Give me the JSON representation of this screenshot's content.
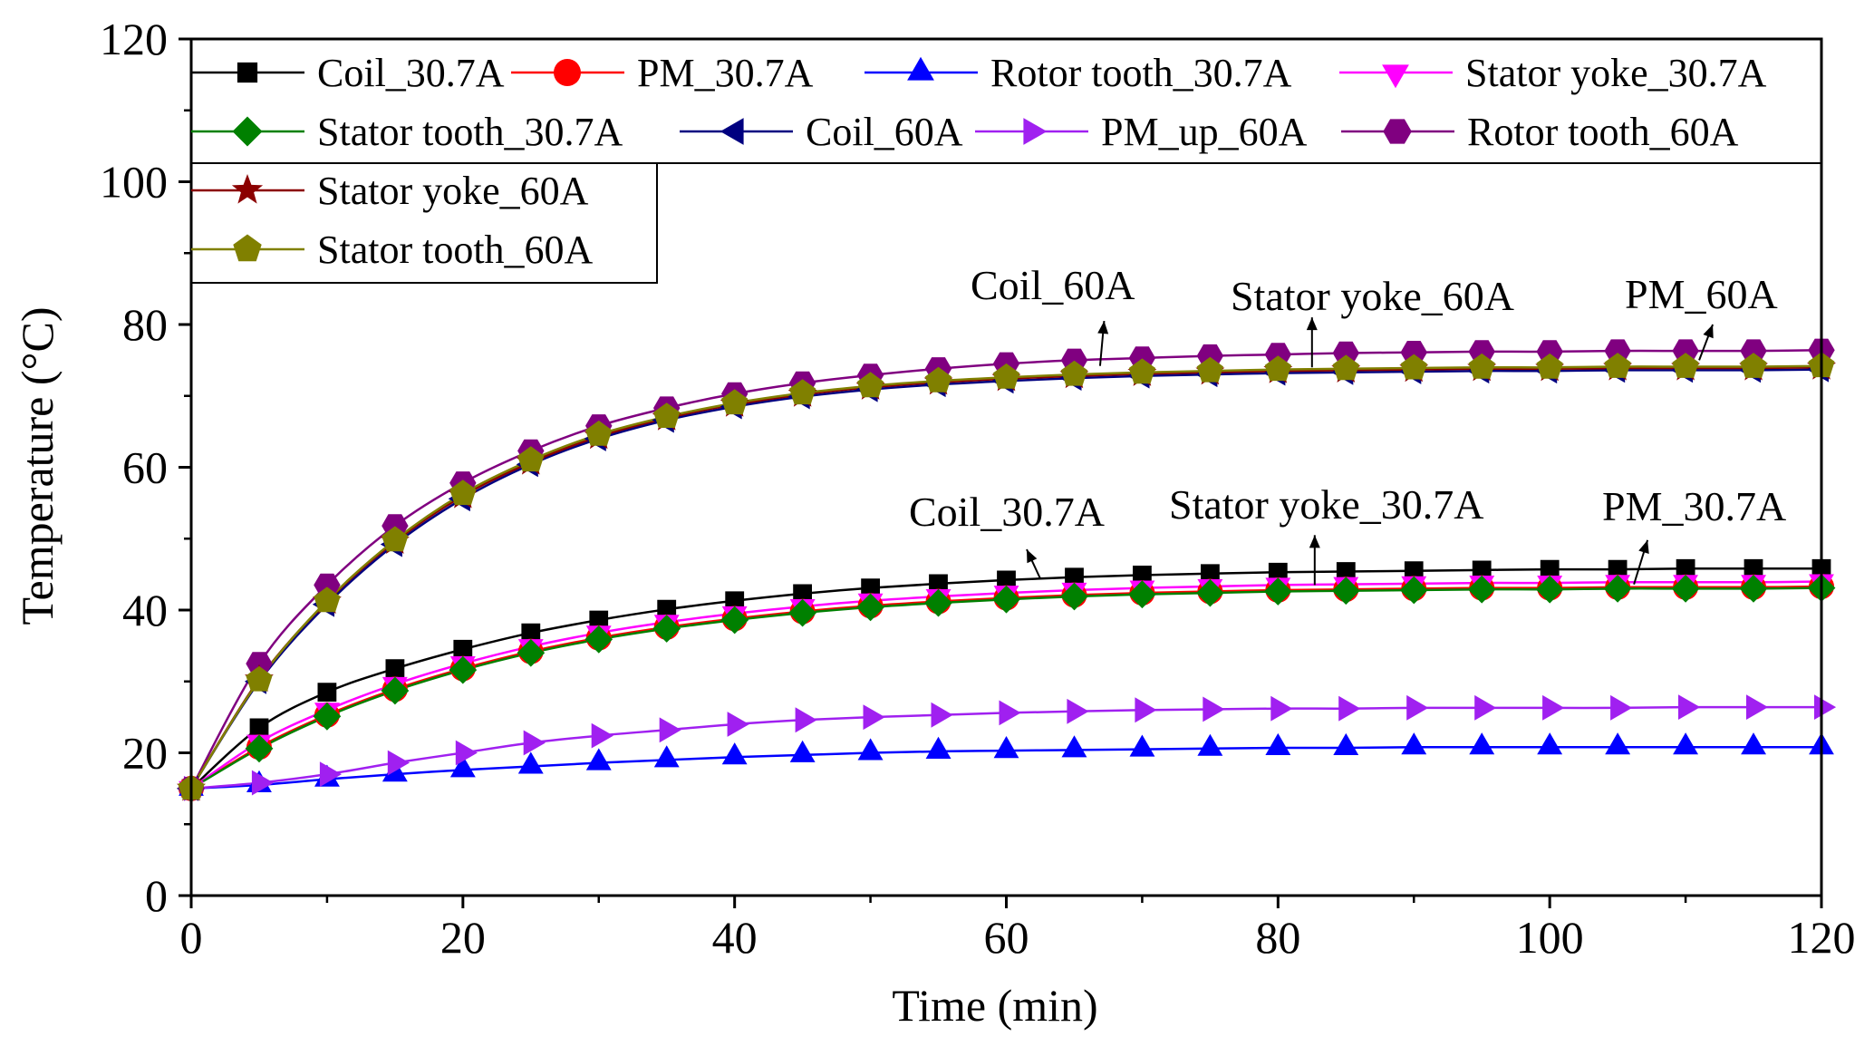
{
  "chart_data": {
    "type": "line",
    "title": "",
    "xlabel": "Time (min)",
    "ylabel": "Temperature (°C)",
    "xlim": [
      0,
      120
    ],
    "ylim": [
      0,
      120
    ],
    "xticks": [
      0,
      20,
      40,
      60,
      80,
      100,
      120
    ],
    "yticks": [
      0,
      20,
      40,
      60,
      80,
      100,
      120
    ],
    "grid": false,
    "legend_position": "top",
    "x": [
      0,
      5,
      10,
      15,
      20,
      25,
      30,
      35,
      40,
      45,
      50,
      55,
      60,
      65,
      70,
      75,
      80,
      85,
      90,
      95,
      100,
      105,
      110,
      115,
      120
    ],
    "series": [
      {
        "name": "Coil_30.7A",
        "marker": "square",
        "color": "#000000",
        "line_color": "#000000",
        "values": [
          15,
          23.5,
          28.5,
          31.8,
          34.5,
          36.8,
          38.6,
          40.1,
          41.3,
          42.3,
          43.1,
          43.7,
          44.2,
          44.6,
          44.9,
          45.1,
          45.3,
          45.4,
          45.5,
          45.6,
          45.7,
          45.7,
          45.8,
          45.8,
          45.8
        ]
      },
      {
        "name": "PM_30.7A",
        "marker": "circle",
        "color": "#ff0000",
        "line_color": "#ff0000",
        "values": [
          15,
          20.8,
          25.3,
          28.9,
          31.8,
          34.2,
          36.1,
          37.6,
          38.8,
          39.8,
          40.6,
          41.2,
          41.7,
          42.1,
          42.4,
          42.6,
          42.8,
          42.9,
          43.0,
          43.1,
          43.1,
          43.2,
          43.2,
          43.2,
          43.3
        ]
      },
      {
        "name": "Rotor tooth_30.7A",
        "marker": "triangle-up",
        "color": "#0000ff",
        "line_color": "#0000ff",
        "values": [
          15,
          15.5,
          16.3,
          17.0,
          17.6,
          18.1,
          18.6,
          19.0,
          19.4,
          19.7,
          20.0,
          20.2,
          20.3,
          20.4,
          20.5,
          20.6,
          20.7,
          20.7,
          20.8,
          20.8,
          20.8,
          20.8,
          20.8,
          20.8,
          20.8
        ]
      },
      {
        "name": "Stator yoke_30.7A",
        "marker": "triangle-down",
        "color": "#ff00ff",
        "line_color": "#ff00ff",
        "values": [
          15,
          21.5,
          26.0,
          29.6,
          32.5,
          34.9,
          36.8,
          38.3,
          39.5,
          40.5,
          41.3,
          41.9,
          42.4,
          42.8,
          43.1,
          43.3,
          43.5,
          43.6,
          43.7,
          43.8,
          43.8,
          43.9,
          43.9,
          43.9,
          44.0
        ]
      },
      {
        "name": "Stator tooth_30.7A",
        "marker": "diamond",
        "color": "#008000",
        "line_color": "#008000",
        "values": [
          15,
          20.6,
          25.1,
          28.7,
          31.6,
          34.0,
          35.9,
          37.4,
          38.6,
          39.6,
          40.4,
          41.0,
          41.5,
          41.9,
          42.2,
          42.4,
          42.6,
          42.7,
          42.8,
          42.9,
          42.9,
          43.0,
          43.0,
          43.0,
          43.1
        ]
      },
      {
        "name": "Coil_60A",
        "marker": "triangle-left",
        "color": "#000080",
        "line_color": "#000080",
        "values": [
          15,
          30.0,
          40.8,
          49.2,
          55.6,
          60.4,
          64.0,
          66.6,
          68.5,
          69.9,
          70.9,
          71.6,
          72.1,
          72.5,
          72.8,
          73.0,
          73.2,
          73.3,
          73.4,
          73.5,
          73.5,
          73.6,
          73.6,
          73.6,
          73.7
        ]
      },
      {
        "name": "PM_up_60A",
        "marker": "triangle-right",
        "color": "#a020f0",
        "line_color": "#a020f0",
        "values": [
          15,
          15.8,
          17.0,
          18.6,
          20.0,
          21.4,
          22.4,
          23.2,
          24.0,
          24.6,
          25.0,
          25.3,
          25.6,
          25.8,
          26.0,
          26.1,
          26.2,
          26.2,
          26.3,
          26.3,
          26.3,
          26.3,
          26.4,
          26.4,
          26.4
        ]
      },
      {
        "name": "Rotor tooth_60A",
        "marker": "hexagon",
        "color": "#800080",
        "line_color": "#800080",
        "values": [
          15,
          32.5,
          43.5,
          51.8,
          57.8,
          62.3,
          65.8,
          68.3,
          70.3,
          71.8,
          72.9,
          73.8,
          74.5,
          75.0,
          75.3,
          75.6,
          75.8,
          76.0,
          76.1,
          76.2,
          76.2,
          76.3,
          76.3,
          76.3,
          76.4
        ]
      },
      {
        "name": "Stator yoke_60A",
        "marker": "star",
        "color": "#8b0000",
        "line_color": "#8b0000",
        "values": [
          15,
          30.3,
          41.2,
          49.6,
          56.0,
          60.7,
          64.3,
          66.9,
          68.8,
          70.2,
          71.2,
          71.9,
          72.4,
          72.8,
          73.1,
          73.3,
          73.5,
          73.6,
          73.7,
          73.8,
          73.8,
          73.9,
          73.9,
          73.9,
          74.0
        ]
      },
      {
        "name": "Stator tooth_60A",
        "marker": "pentagon",
        "color": "#808000",
        "line_color": "#808000",
        "values": [
          15,
          30.2,
          41.3,
          49.8,
          56.3,
          61.0,
          64.6,
          67.1,
          69.0,
          70.4,
          71.4,
          72.1,
          72.6,
          73.0,
          73.3,
          73.5,
          73.7,
          73.8,
          73.9,
          74.0,
          74.0,
          74.1,
          74.1,
          74.1,
          74.2
        ]
      }
    ],
    "annotations": [
      {
        "text": "Coil_60A",
        "arrow_from": [
          67.2,
          80.5
        ],
        "arrow_to": [
          66.9,
          74.2
        ]
      },
      {
        "text": "Stator yoke_60A",
        "arrow_from": [
          82.5,
          81.0
        ],
        "arrow_to": [
          82.5,
          74.0
        ]
      },
      {
        "text": "PM_60A",
        "arrow_from": [
          112.0,
          80.0
        ],
        "arrow_to": [
          111.0,
          75.0
        ]
      },
      {
        "text": "Coil_30.7A",
        "arrow_from": [
          61.5,
          48.5
        ],
        "arrow_to": [
          62.5,
          44.4
        ]
      },
      {
        "text": "Stator yoke_30.7A",
        "arrow_from": [
          82.7,
          50.5
        ],
        "arrow_to": [
          82.7,
          43.5
        ]
      },
      {
        "text": "PM_30.7A",
        "arrow_from": [
          107.2,
          49.8
        ],
        "arrow_to": [
          106.2,
          43.6
        ]
      }
    ]
  }
}
